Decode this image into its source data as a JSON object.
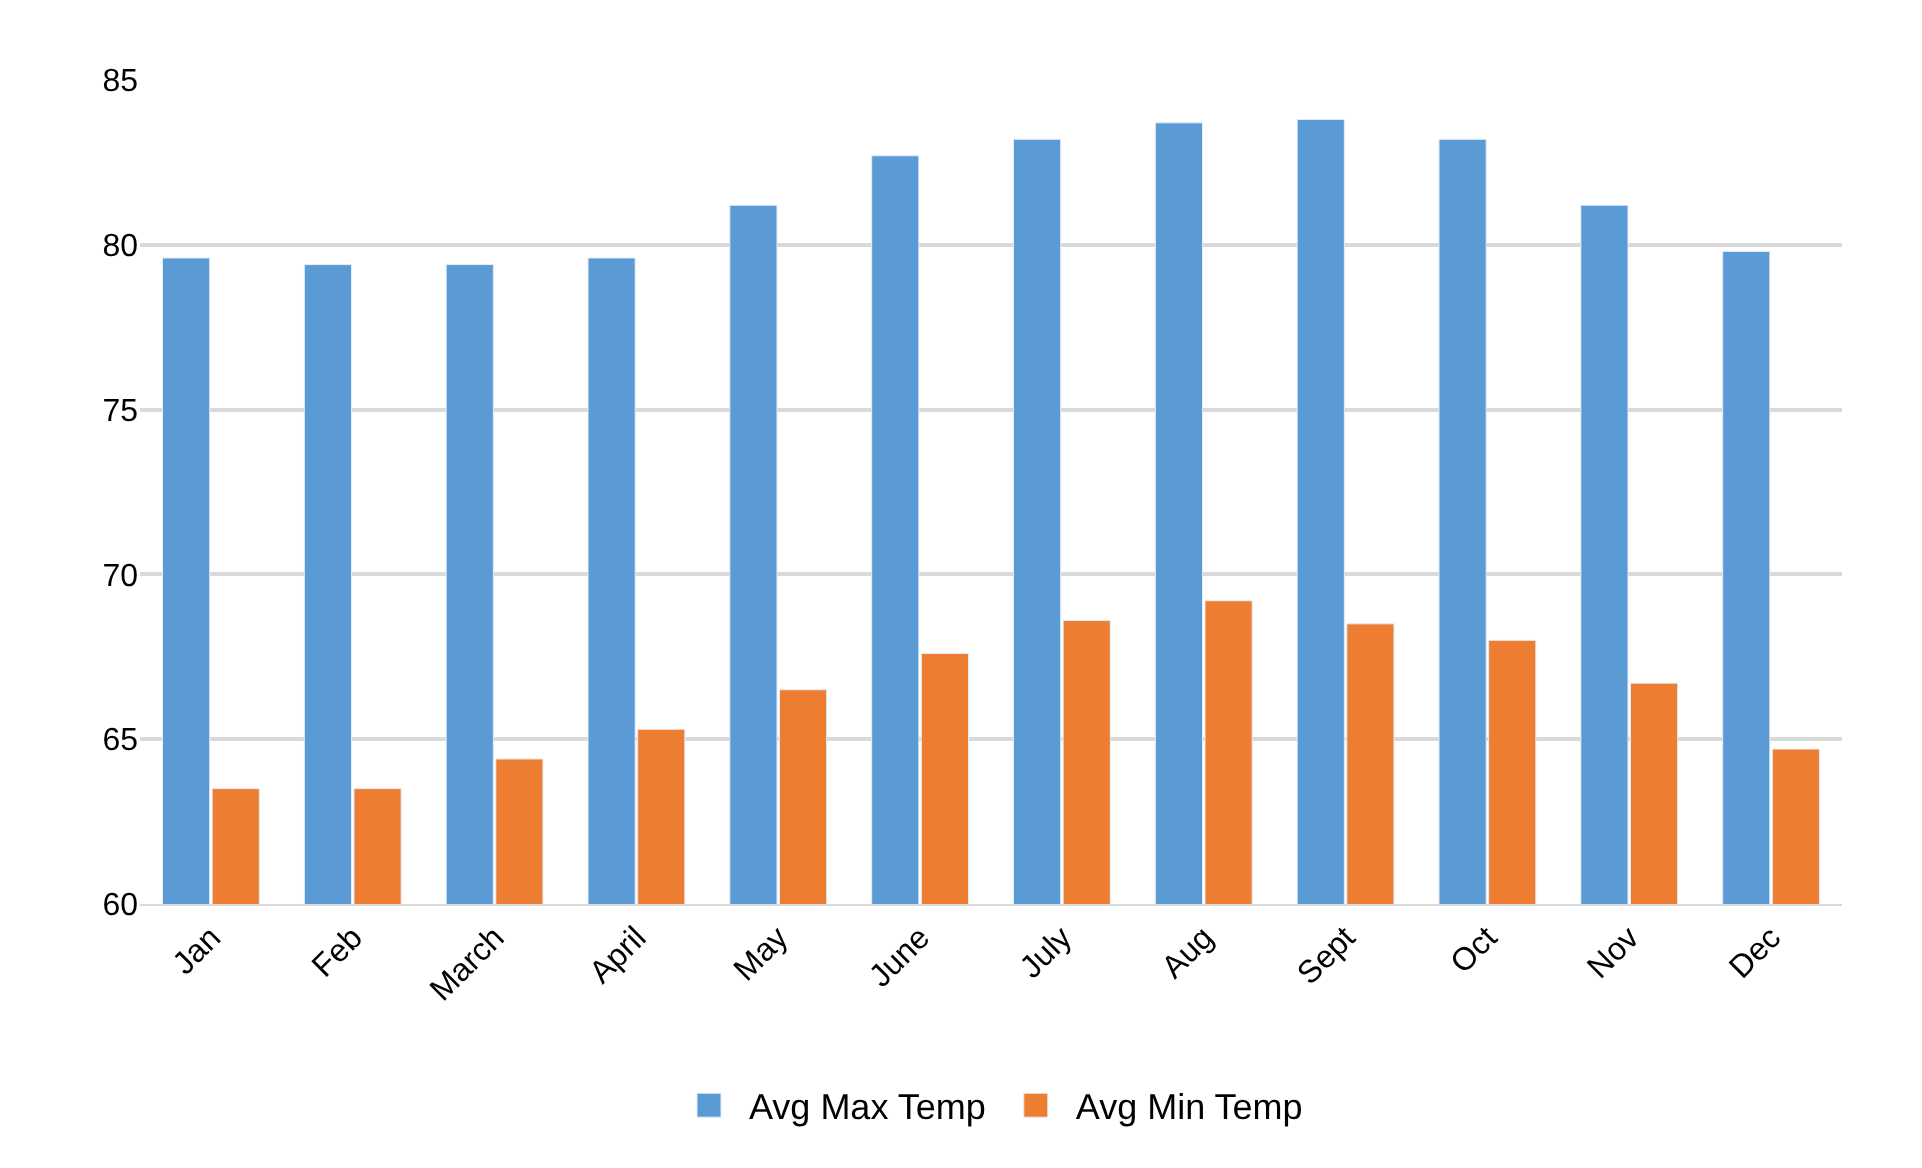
{
  "chart_data": {
    "type": "bar",
    "categories": [
      "Jan",
      "Feb",
      "March",
      "April",
      "May",
      "June",
      "July",
      "Aug",
      "Sept",
      "Oct",
      "Nov",
      "Dec"
    ],
    "series": [
      {
        "name": "Avg Max Temp",
        "color": "#5b9bd5",
        "values": [
          79.6,
          79.4,
          79.4,
          79.6,
          81.2,
          82.7,
          83.2,
          83.7,
          83.8,
          83.2,
          81.2,
          79.8
        ]
      },
      {
        "name": "Avg Min Temp",
        "color": "#ed7d31",
        "values": [
          63.5,
          63.5,
          64.4,
          65.3,
          66.5,
          67.6,
          68.6,
          69.2,
          68.5,
          68.0,
          66.7,
          64.7
        ]
      }
    ],
    "ylim": [
      60,
      85
    ],
    "yticks": [
      60,
      65,
      70,
      75,
      80,
      85
    ],
    "grid": "y",
    "legend": "bottom"
  }
}
